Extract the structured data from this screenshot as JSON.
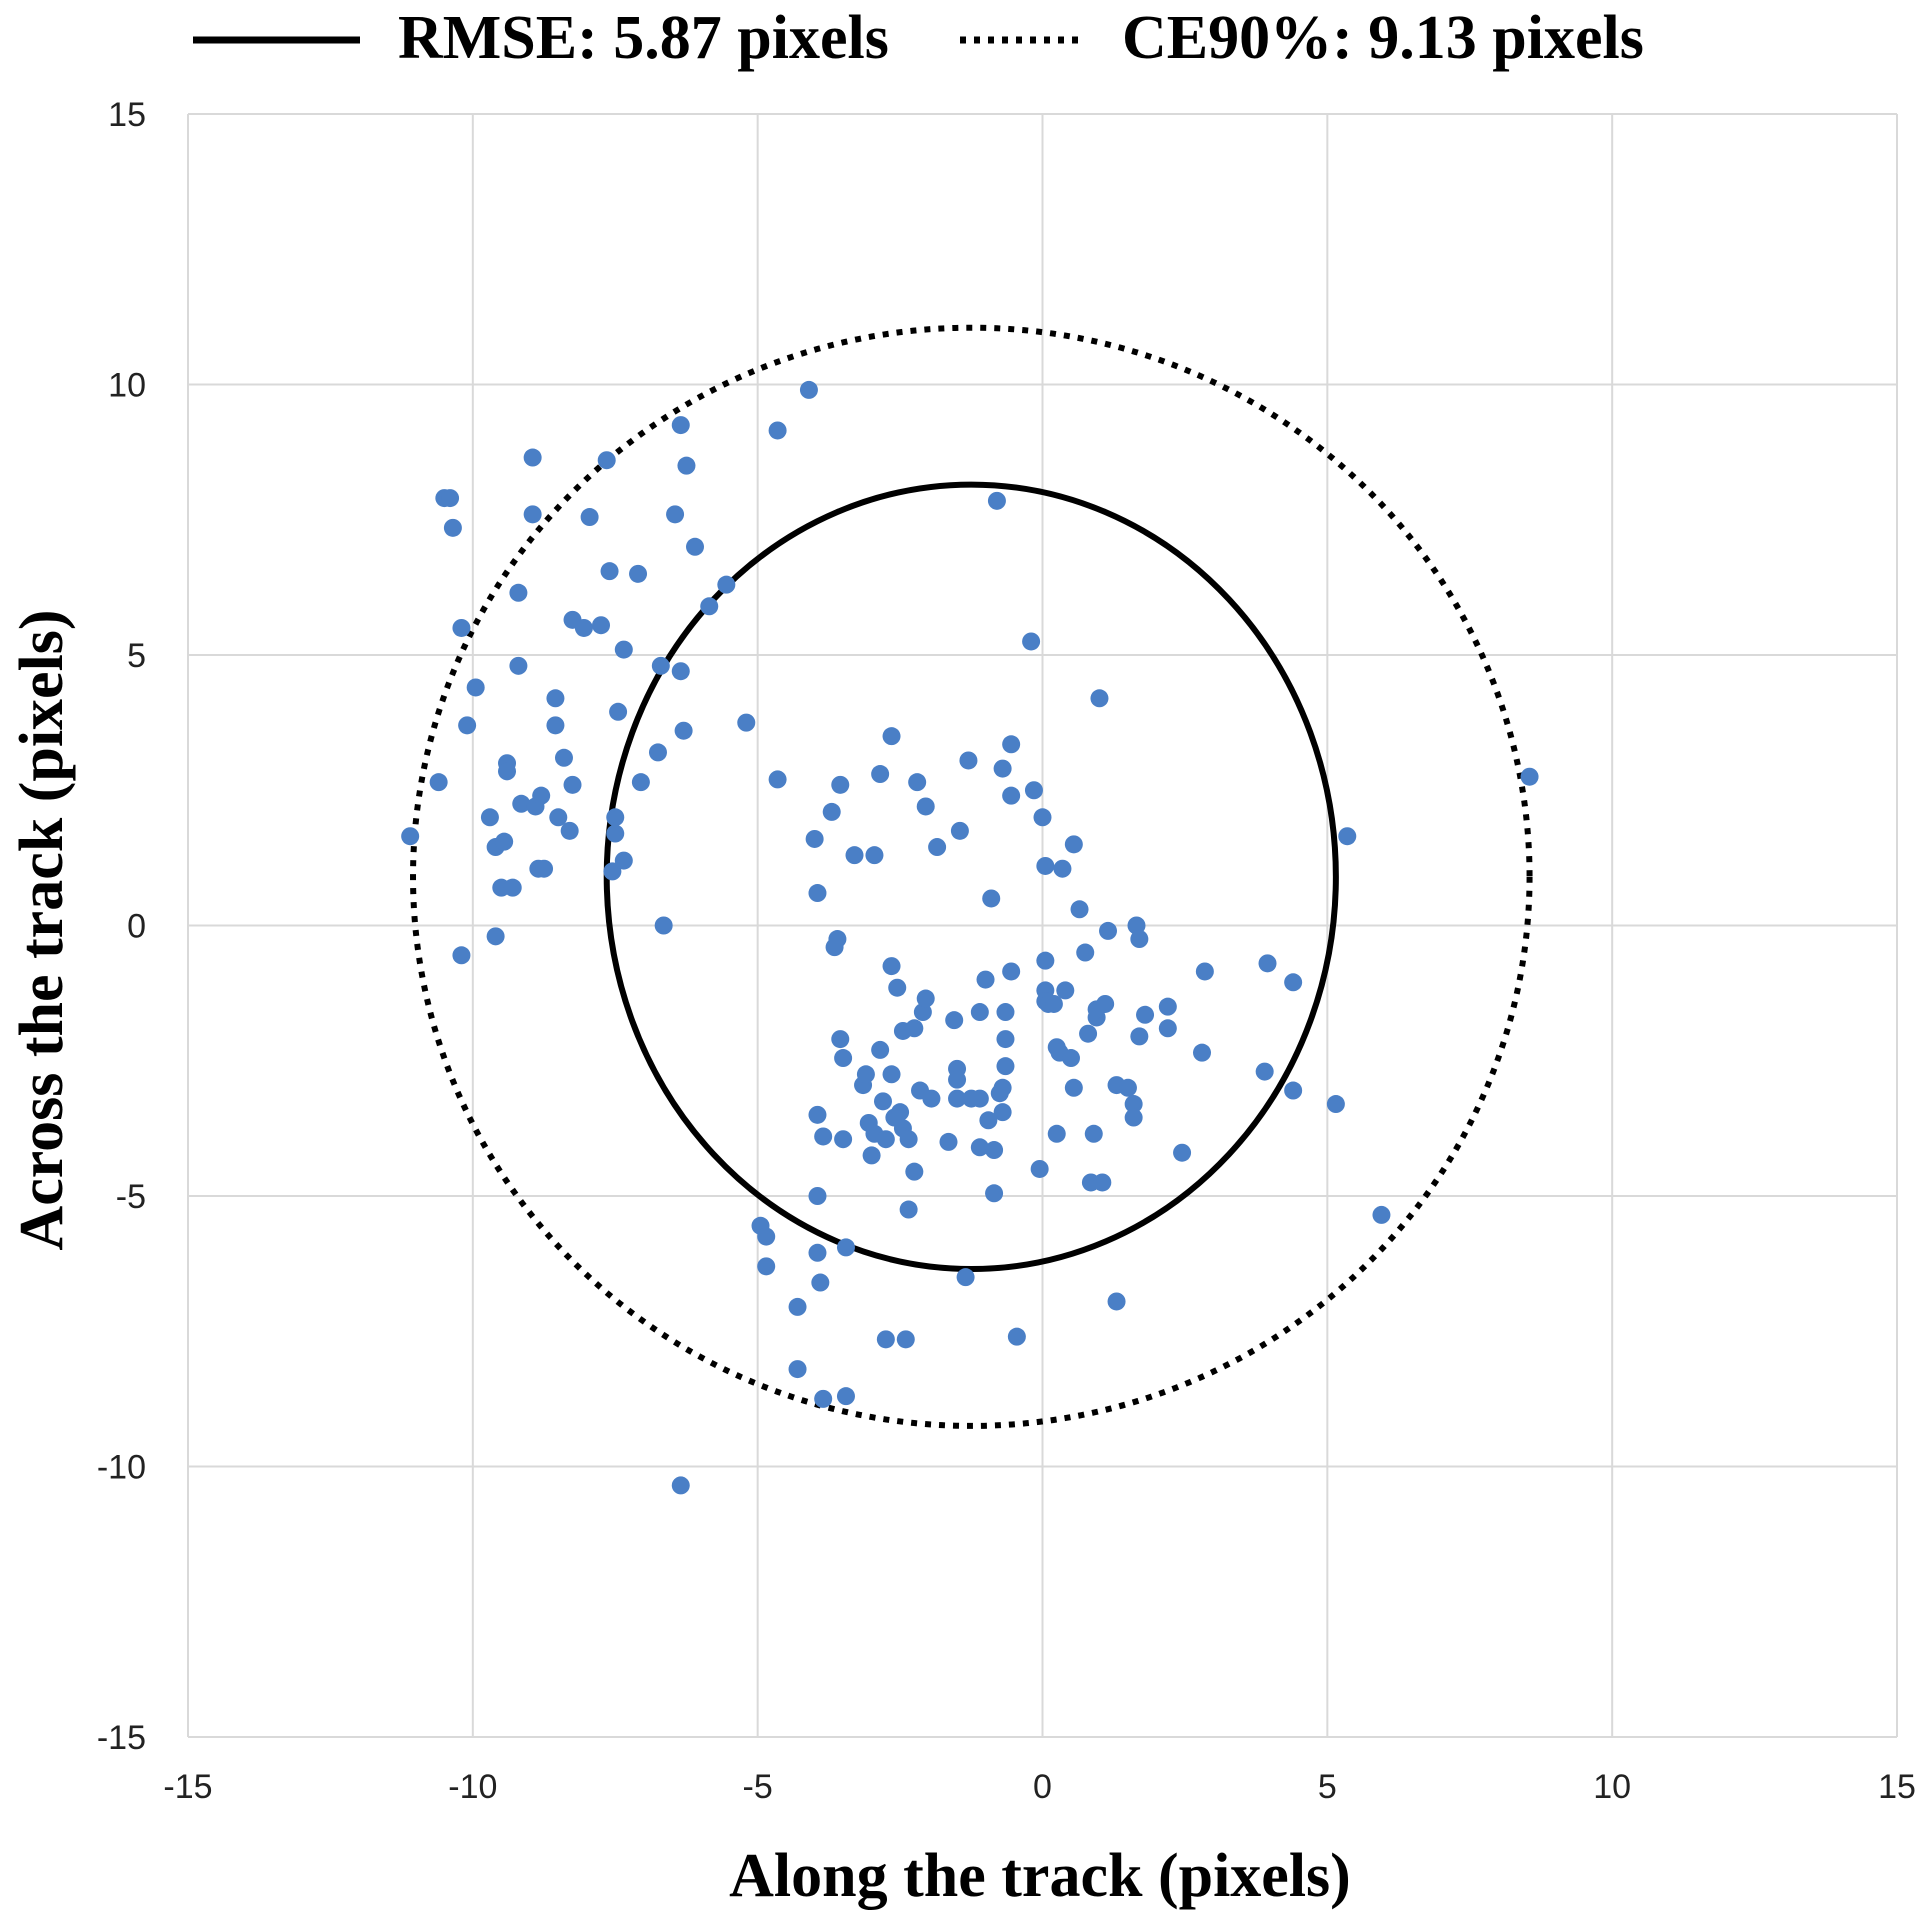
{
  "chart_data": {
    "type": "scatter",
    "xlabel": "Along the track (pixels)",
    "ylabel": "Across the track (pixels)",
    "xlim": [
      -15,
      15
    ],
    "ylim": [
      -15,
      15
    ],
    "xticks": [
      -15,
      -10,
      -5,
      0,
      5,
      10,
      15
    ],
    "yticks": [
      -15,
      -10,
      -5,
      0,
      5,
      10,
      15
    ],
    "grid": true,
    "legend": {
      "placement": "top",
      "rmse_label": "RMSE: 5.87 pixels",
      "ce90_label": "CE90%: 9.13 pixels"
    },
    "circles": [
      {
        "name": "RMSE",
        "center": [
          -1.25,
          0.9
        ],
        "rx": 6.4,
        "ry": 7.25,
        "style": "solid"
      },
      {
        "name": "CE90%",
        "center": [
          -1.25,
          0.9
        ],
        "rx": 9.8,
        "ry": 10.15,
        "style": "dotted"
      }
    ],
    "marker_color": "#4a7fc6",
    "series": [
      {
        "name": "residuals",
        "points": [
          [
            -11.1,
            1.65
          ],
          [
            -10.6,
            2.65
          ],
          [
            -10.5,
            7.9
          ],
          [
            -10.4,
            7.9
          ],
          [
            -10.35,
            7.35
          ],
          [
            -10.2,
            5.5
          ],
          [
            -10.2,
            -0.55
          ],
          [
            -10.1,
            3.7
          ],
          [
            -9.95,
            4.4
          ],
          [
            -9.7,
            2.0
          ],
          [
            -9.6,
            1.45
          ],
          [
            -9.6,
            -0.2
          ],
          [
            -9.5,
            0.7
          ],
          [
            -9.45,
            1.55
          ],
          [
            -9.4,
            3.0
          ],
          [
            -9.4,
            2.85
          ],
          [
            -9.3,
            0.7
          ],
          [
            -9.2,
            6.15
          ],
          [
            -9.2,
            4.8
          ],
          [
            -9.15,
            2.25
          ],
          [
            -8.95,
            8.65
          ],
          [
            -8.95,
            7.6
          ],
          [
            -8.9,
            2.2
          ],
          [
            -8.85,
            1.05
          ],
          [
            -8.8,
            2.4
          ],
          [
            -8.75,
            1.05
          ],
          [
            -8.55,
            4.2
          ],
          [
            -8.55,
            3.7
          ],
          [
            -8.5,
            2.0
          ],
          [
            -8.4,
            3.1
          ],
          [
            -8.3,
            1.75
          ],
          [
            -8.25,
            5.65
          ],
          [
            -8.25,
            2.6
          ],
          [
            -8.05,
            5.5
          ],
          [
            -7.95,
            7.55
          ],
          [
            -7.75,
            5.55
          ],
          [
            -7.65,
            8.6
          ],
          [
            -7.6,
            6.55
          ],
          [
            -7.55,
            1.0
          ],
          [
            -7.5,
            2.0
          ],
          [
            -7.5,
            1.7
          ],
          [
            -7.45,
            3.95
          ],
          [
            -7.35,
            5.1
          ],
          [
            -7.35,
            1.2
          ],
          [
            -7.1,
            6.5
          ],
          [
            -7.05,
            2.65
          ],
          [
            -6.75,
            3.2
          ],
          [
            -6.7,
            4.8
          ],
          [
            -6.65,
            0.0
          ],
          [
            -6.45,
            7.6
          ],
          [
            -6.35,
            9.25
          ],
          [
            -6.35,
            4.7
          ],
          [
            -6.3,
            3.6
          ],
          [
            -6.25,
            8.5
          ],
          [
            -6.1,
            7.0
          ],
          [
            -5.85,
            5.9
          ],
          [
            -5.55,
            6.3
          ],
          [
            -5.2,
            3.75
          ],
          [
            -4.95,
            -5.55
          ],
          [
            -4.85,
            -5.75
          ],
          [
            -4.85,
            -6.3
          ],
          [
            -4.65,
            9.15
          ],
          [
            -4.65,
            2.7
          ],
          [
            -4.3,
            -7.05
          ],
          [
            -4.3,
            -8.2
          ],
          [
            -4.1,
            9.9
          ],
          [
            -4.0,
            1.6
          ],
          [
            -3.95,
            0.6
          ],
          [
            -3.95,
            -3.5
          ],
          [
            -3.95,
            -5.0
          ],
          [
            -3.95,
            -6.05
          ],
          [
            -3.9,
            -6.6
          ],
          [
            -3.85,
            -3.9
          ],
          [
            -3.85,
            -8.75
          ],
          [
            -3.7,
            2.1
          ],
          [
            -3.65,
            -0.4
          ],
          [
            -3.6,
            -0.25
          ],
          [
            -3.55,
            2.6
          ],
          [
            -3.55,
            -2.1
          ],
          [
            -3.5,
            -2.45
          ],
          [
            -3.5,
            -3.95
          ],
          [
            -3.45,
            -5.95
          ],
          [
            -3.45,
            -8.7
          ],
          [
            -3.3,
            1.3
          ],
          [
            -3.15,
            -2.95
          ],
          [
            -3.1,
            -2.75
          ],
          [
            -3.05,
            -3.65
          ],
          [
            -3.0,
            -4.25
          ],
          [
            -2.95,
            1.3
          ],
          [
            -2.95,
            -3.85
          ],
          [
            -2.85,
            2.8
          ],
          [
            -2.85,
            -2.3
          ],
          [
            -2.8,
            -3.25
          ],
          [
            -2.75,
            -3.95
          ],
          [
            -2.75,
            -7.65
          ],
          [
            -2.65,
            3.5
          ],
          [
            -2.65,
            -0.75
          ],
          [
            -2.65,
            -2.75
          ],
          [
            -2.6,
            -3.55
          ],
          [
            -2.55,
            -1.15
          ],
          [
            -2.5,
            -3.45
          ],
          [
            -2.45,
            -1.95
          ],
          [
            -2.45,
            -3.75
          ],
          [
            -2.4,
            -7.65
          ],
          [
            -2.35,
            -5.25
          ],
          [
            -2.35,
            -3.95
          ],
          [
            -2.25,
            -4.55
          ],
          [
            -2.25,
            -1.9
          ],
          [
            -2.2,
            2.65
          ],
          [
            -2.15,
            -3.05
          ],
          [
            -2.1,
            -1.6
          ],
          [
            -2.05,
            2.2
          ],
          [
            -2.05,
            -1.35
          ],
          [
            -1.95,
            -3.2
          ],
          [
            -1.85,
            1.45
          ],
          [
            -1.65,
            -4.0
          ],
          [
            -1.55,
            -1.75
          ],
          [
            -1.5,
            -2.65
          ],
          [
            -1.5,
            -2.85
          ],
          [
            -1.5,
            -3.2
          ],
          [
            -1.45,
            1.75
          ],
          [
            -1.35,
            -6.5
          ],
          [
            -1.3,
            3.05
          ],
          [
            -1.25,
            -3.2
          ],
          [
            -1.1,
            -1.6
          ],
          [
            -1.1,
            -3.2
          ],
          [
            -1.1,
            -4.1
          ],
          [
            -1.0,
            -1.0
          ],
          [
            -0.95,
            -3.6
          ],
          [
            -0.9,
            0.5
          ],
          [
            -0.85,
            -4.95
          ],
          [
            -0.85,
            -4.15
          ],
          [
            -0.8,
            7.85
          ],
          [
            -0.75,
            -3.1
          ],
          [
            -0.7,
            2.9
          ],
          [
            -0.7,
            -3.0
          ],
          [
            -0.7,
            -3.45
          ],
          [
            -0.65,
            -1.6
          ],
          [
            -0.65,
            -2.1
          ],
          [
            -0.65,
            -2.6
          ],
          [
            -0.55,
            3.35
          ],
          [
            -0.55,
            2.4
          ],
          [
            -0.55,
            -0.85
          ],
          [
            -0.45,
            -7.6
          ],
          [
            -0.2,
            5.25
          ],
          [
            -0.15,
            2.5
          ],
          [
            -0.05,
            -4.5
          ],
          [
            0.0,
            2.0
          ],
          [
            0.05,
            1.1
          ],
          [
            0.05,
            -0.65
          ],
          [
            0.05,
            -1.2
          ],
          [
            0.05,
            -1.4
          ],
          [
            0.1,
            -1.45
          ],
          [
            0.2,
            -1.45
          ],
          [
            0.25,
            -2.25
          ],
          [
            0.25,
            -3.85
          ],
          [
            0.3,
            -2.35
          ],
          [
            0.35,
            1.05
          ],
          [
            0.4,
            -1.2
          ],
          [
            0.5,
            -2.45
          ],
          [
            0.55,
            1.5
          ],
          [
            0.55,
            -3.0
          ],
          [
            0.65,
            0.3
          ],
          [
            0.75,
            -0.5
          ],
          [
            0.8,
            -2.0
          ],
          [
            0.85,
            -4.75
          ],
          [
            0.9,
            -3.85
          ],
          [
            0.95,
            -1.7
          ],
          [
            0.95,
            -1.55
          ],
          [
            1.0,
            4.2
          ],
          [
            1.05,
            -4.75
          ],
          [
            1.1,
            -1.45
          ],
          [
            1.15,
            -0.1
          ],
          [
            1.3,
            -2.95
          ],
          [
            1.3,
            -6.95
          ],
          [
            1.5,
            -3.0
          ],
          [
            1.6,
            -3.3
          ],
          [
            1.6,
            -3.55
          ],
          [
            1.65,
            0.0
          ],
          [
            1.7,
            -0.25
          ],
          [
            1.7,
            -2.05
          ],
          [
            1.8,
            -1.65
          ],
          [
            2.2,
            -1.5
          ],
          [
            2.2,
            -1.9
          ],
          [
            2.45,
            -4.2
          ],
          [
            2.8,
            -2.35
          ],
          [
            2.85,
            -0.85
          ],
          [
            3.9,
            -2.7
          ],
          [
            3.95,
            -0.7
          ],
          [
            4.4,
            -1.05
          ],
          [
            4.4,
            -3.05
          ],
          [
            5.15,
            -3.3
          ],
          [
            5.35,
            1.65
          ],
          [
            5.95,
            -5.35
          ],
          [
            8.55,
            2.75
          ],
          [
            -6.35,
            -10.35
          ]
        ]
      }
    ]
  }
}
